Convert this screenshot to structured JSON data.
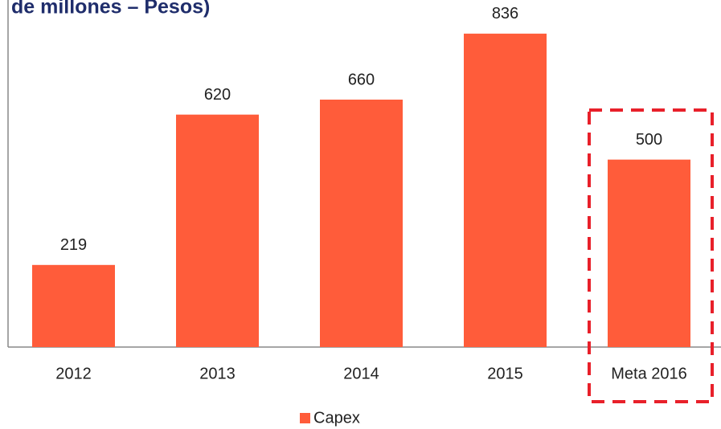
{
  "chart_data": {
    "type": "bar",
    "title": "de millones – Pesos)",
    "categories": [
      "2012",
      "2013",
      "2014",
      "2015",
      "Meta 2016"
    ],
    "series": [
      {
        "name": "Capex",
        "color": "#ff5c3a",
        "values": [
          219,
          620,
          660,
          836,
          500
        ]
      }
    ],
    "ylim": [
      0,
      900
    ],
    "legend": "bottom"
  }
}
